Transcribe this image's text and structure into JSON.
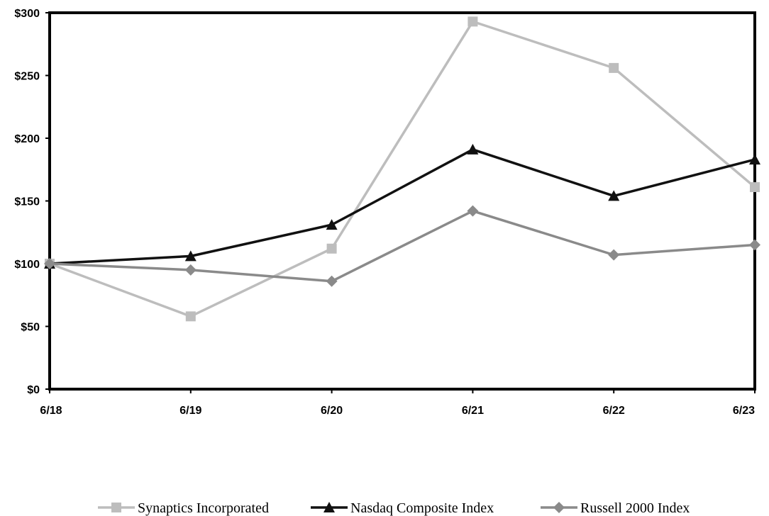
{
  "chart_data": {
    "type": "line",
    "categories": [
      "6/18",
      "6/19",
      "6/20",
      "6/21",
      "6/22",
      "6/23"
    ],
    "ylim": [
      0,
      300
    ],
    "yticks": [
      0,
      50,
      100,
      150,
      200,
      250,
      300
    ],
    "ytick_labels": [
      "$0",
      "$50",
      "$100",
      "$150",
      "$200",
      "$250",
      "$300"
    ],
    "grid": false,
    "legend_position": "bottom",
    "series": [
      {
        "name": "Synaptics Incorporated",
        "color": "#bdbdbd",
        "marker": "square",
        "values": [
          100,
          58,
          112,
          293,
          256,
          161
        ]
      },
      {
        "name": "Nasdaq Composite Index",
        "color": "#111111",
        "marker": "triangle",
        "values": [
          100,
          106,
          131,
          191,
          154,
          183
        ]
      },
      {
        "name": "Russell 2000 Index",
        "color": "#8a8a8a",
        "marker": "diamond",
        "values": [
          100,
          95,
          86,
          142,
          107,
          115
        ]
      }
    ]
  }
}
